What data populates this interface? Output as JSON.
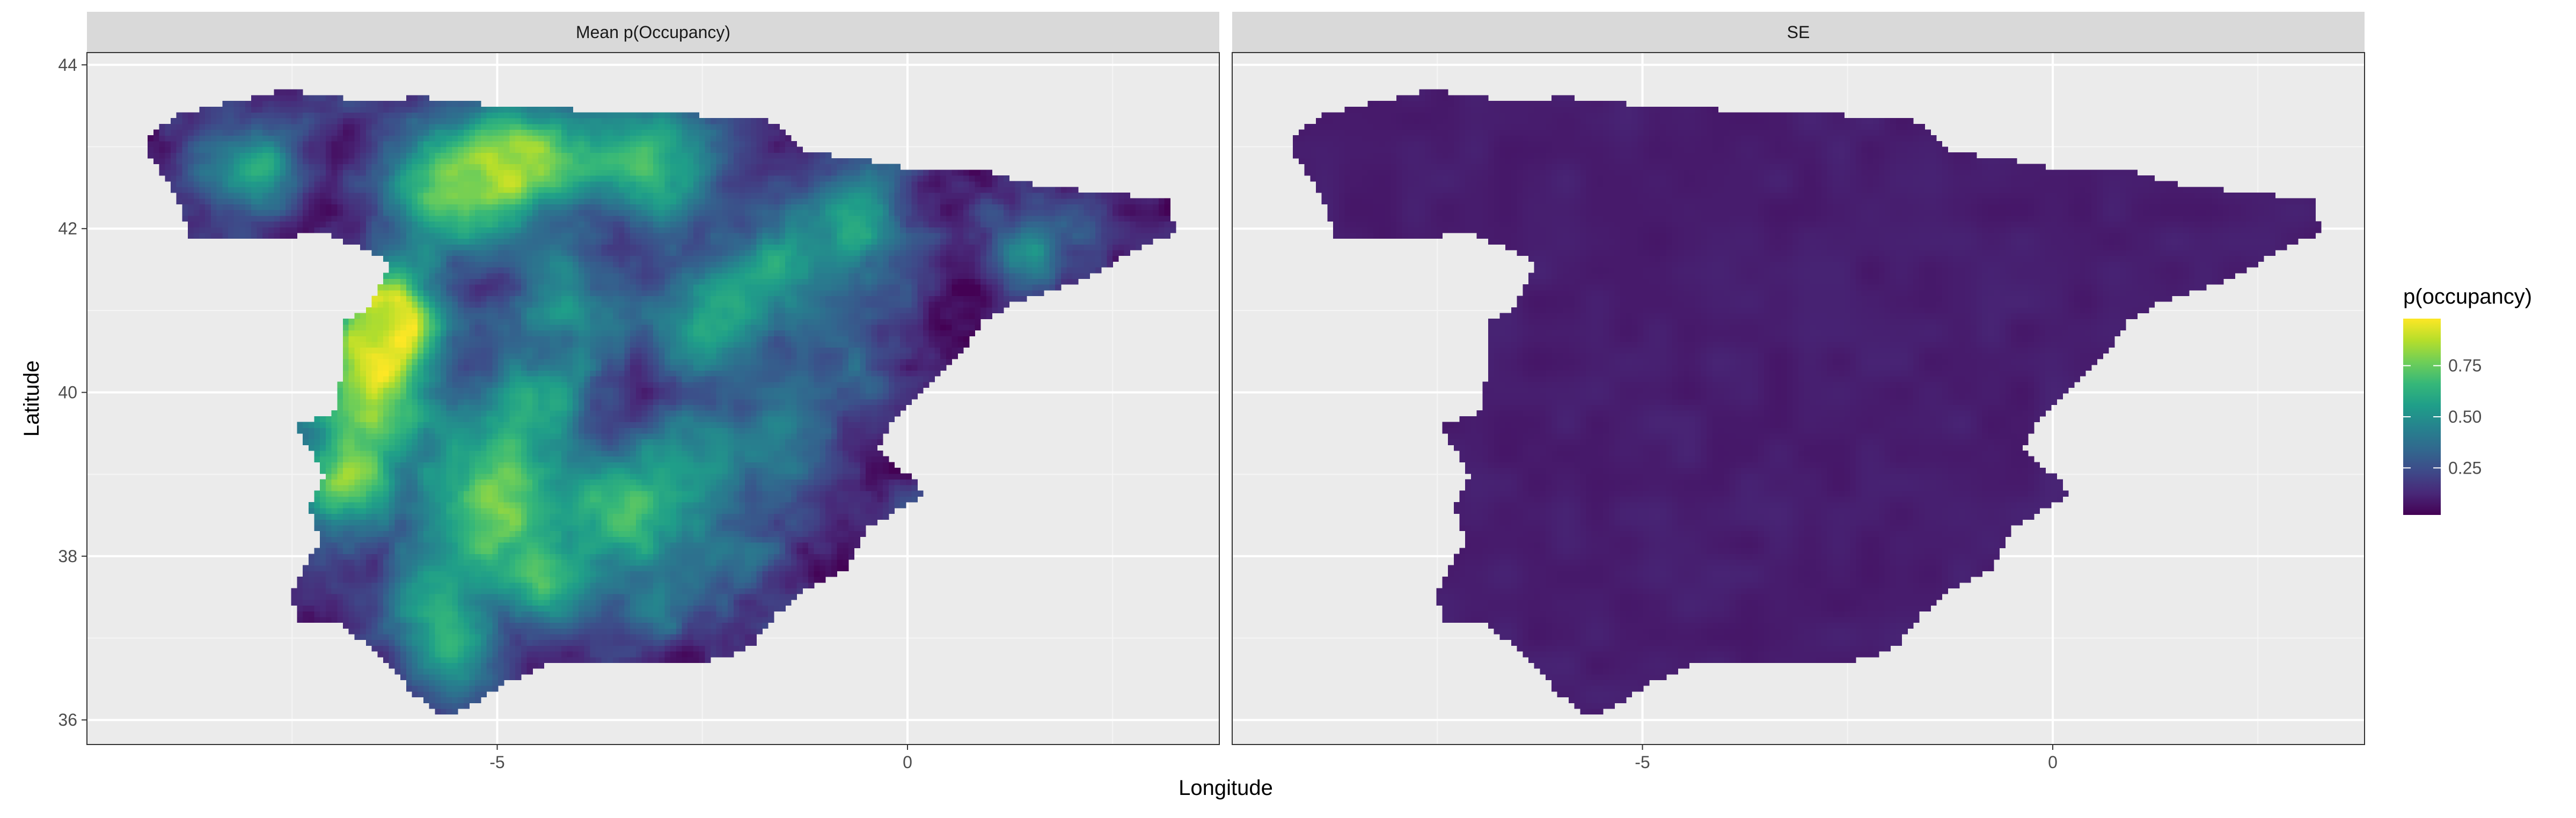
{
  "chart_data": {
    "type": "heatmap",
    "xlabel": "Longitude",
    "ylabel": "Latitude",
    "xlim": [
      -10.0,
      3.8
    ],
    "ylim": [
      35.7,
      44.15
    ],
    "x_ticks": [
      -5,
      0
    ],
    "x_tick_labels": [
      "-5",
      "0"
    ],
    "y_ticks": [
      36,
      38,
      40,
      42,
      44
    ],
    "y_tick_labels": [
      "36",
      "38",
      "40",
      "42",
      "44"
    ],
    "grid": true,
    "legend": {
      "title": "p(occupancy)",
      "position": "right",
      "breaks": [
        0.25,
        0.5,
        0.75
      ],
      "break_labels": [
        "0.25",
        "0.50",
        "0.75"
      ],
      "range": [
        0.02,
        0.98
      ]
    },
    "palette": [
      "#440154",
      "#482878",
      "#3e4a89",
      "#31688e",
      "#26828e",
      "#1f9e89",
      "#35b779",
      "#6ece58",
      "#b5de2b",
      "#fde725"
    ],
    "outline": [
      [
        -8.9,
        43.4
      ],
      [
        -8.2,
        43.55
      ],
      [
        -7.6,
        43.7
      ],
      [
        -6.8,
        43.58
      ],
      [
        -5.9,
        43.6
      ],
      [
        -5.0,
        43.5
      ],
      [
        -4.0,
        43.45
      ],
      [
        -3.4,
        43.45
      ],
      [
        -2.8,
        43.4
      ],
      [
        -2.0,
        43.35
      ],
      [
        -1.6,
        43.3
      ],
      [
        -1.3,
        42.95
      ],
      [
        -0.6,
        42.85
      ],
      [
        0.2,
        42.7
      ],
      [
        0.8,
        42.75
      ],
      [
        1.5,
        42.55
      ],
      [
        2.3,
        42.45
      ],
      [
        3.2,
        42.35
      ],
      [
        3.25,
        41.95
      ],
      [
        2.8,
        41.75
      ],
      [
        2.2,
        41.4
      ],
      [
        1.3,
        41.1
      ],
      [
        0.9,
        40.85
      ],
      [
        0.7,
        40.55
      ],
      [
        0.2,
        40.0
      ],
      [
        -0.2,
        39.6
      ],
      [
        -0.35,
        39.3
      ],
      [
        0.1,
        38.9
      ],
      [
        0.2,
        38.75
      ],
      [
        -0.5,
        38.35
      ],
      [
        -0.75,
        37.85
      ],
      [
        -1.3,
        37.55
      ],
      [
        -1.6,
        37.3
      ],
      [
        -1.9,
        36.9
      ],
      [
        -2.2,
        36.75
      ],
      [
        -2.9,
        36.7
      ],
      [
        -3.6,
        36.72
      ],
      [
        -4.4,
        36.68
      ],
      [
        -4.9,
        36.45
      ],
      [
        -5.35,
        36.15
      ],
      [
        -5.7,
        36.05
      ],
      [
        -6.05,
        36.35
      ],
      [
        -6.4,
        36.78
      ],
      [
        -6.95,
        37.2
      ],
      [
        -7.45,
        37.2
      ],
      [
        -7.5,
        37.6
      ],
      [
        -7.15,
        38.2
      ],
      [
        -7.3,
        38.6
      ],
      [
        -7.1,
        39.0
      ],
      [
        -7.5,
        39.65
      ],
      [
        -7.0,
        39.7
      ],
      [
        -6.9,
        40.2
      ],
      [
        -6.85,
        40.9
      ],
      [
        -6.6,
        41.0
      ],
      [
        -6.3,
        41.6
      ],
      [
        -7.1,
        41.95
      ],
      [
        -8.0,
        41.85
      ],
      [
        -8.75,
        41.9
      ],
      [
        -8.9,
        42.4
      ],
      [
        -9.25,
        42.9
      ],
      [
        -9.3,
        43.1
      ]
    ],
    "hotspots": [
      [
        -6.3,
        40.9,
        0.55,
        0.98
      ],
      [
        -6.7,
        40.1,
        0.9,
        0.92
      ],
      [
        -5.6,
        42.5,
        0.9,
        0.9
      ],
      [
        -4.5,
        42.9,
        0.8,
        0.86
      ],
      [
        -3.0,
        42.8,
        0.7,
        0.82
      ],
      [
        -5.0,
        38.7,
        1.0,
        0.8
      ],
      [
        -3.2,
        38.6,
        0.8,
        0.78
      ],
      [
        -4.2,
        41.2,
        0.6,
        0.6
      ],
      [
        -2.5,
        40.8,
        0.7,
        0.58
      ],
      [
        -1.5,
        41.5,
        0.7,
        0.62
      ],
      [
        -0.5,
        42.1,
        0.6,
        0.55
      ],
      [
        -4.6,
        39.9,
        0.6,
        0.5
      ],
      [
        -5.8,
        37.5,
        0.6,
        0.5
      ],
      [
        -4.3,
        37.6,
        0.5,
        0.58
      ],
      [
        -3.0,
        37.4,
        0.5,
        0.35
      ],
      [
        -2.0,
        38.0,
        0.6,
        0.3
      ],
      [
        -1.5,
        39.5,
        0.7,
        0.3
      ],
      [
        -0.6,
        40.3,
        0.6,
        0.25
      ],
      [
        -5.6,
        36.8,
        0.5,
        0.5
      ],
      [
        -4.0,
        40.3,
        0.4,
        0.25
      ],
      [
        -2.5,
        39.4,
        0.6,
        0.25
      ],
      [
        1.4,
        41.8,
        0.5,
        0.5
      ],
      [
        -7.9,
        42.7,
        0.6,
        0.72
      ],
      [
        -6.9,
        38.9,
        0.55,
        0.75
      ]
    ],
    "panels": [
      {
        "strip": "Mean p(Occupancy)",
        "series": "mean",
        "base": 0.22,
        "amplitude": 1.0
      },
      {
        "strip": "SE",
        "series": "se",
        "base": 0.06,
        "amplitude": 0.04
      }
    ]
  }
}
